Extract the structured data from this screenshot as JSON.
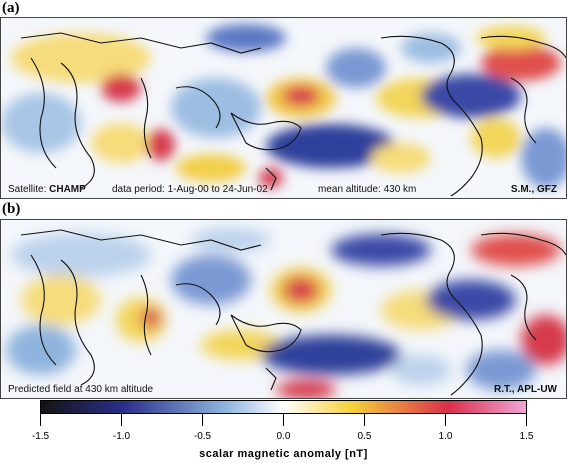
{
  "panels": [
    {
      "label": "(a)",
      "caption_left_prefix": "Satellite: ",
      "caption_left_value": "CHAMP",
      "caption_mid": "data period: 1-Aug-00 to 24-Jun-02",
      "caption_right_mid": "mean altitude: 430 km",
      "caption_credit": "S.M., GFZ"
    },
    {
      "label": "(b)",
      "caption_left_prefix": "Predicted field at 430 km altitude",
      "caption_credit": "R.T., APL-UW"
    }
  ],
  "colorbar": {
    "title": "scalar magnetic anomaly [nT]",
    "ticks": [
      "-1.5",
      "-1.0",
      "-0.5",
      "0.0",
      "0.5",
      "1.0",
      "1.5"
    ],
    "min": -1.5,
    "max": 1.5,
    "colors": {
      "min": "#141414",
      "low": "#2a2f8c",
      "mid_low": "#8fb4de",
      "zero": "#ffffff",
      "mid_high": "#f5d23a",
      "high": "#d8304a",
      "max": "#f0a6d8"
    }
  }
}
